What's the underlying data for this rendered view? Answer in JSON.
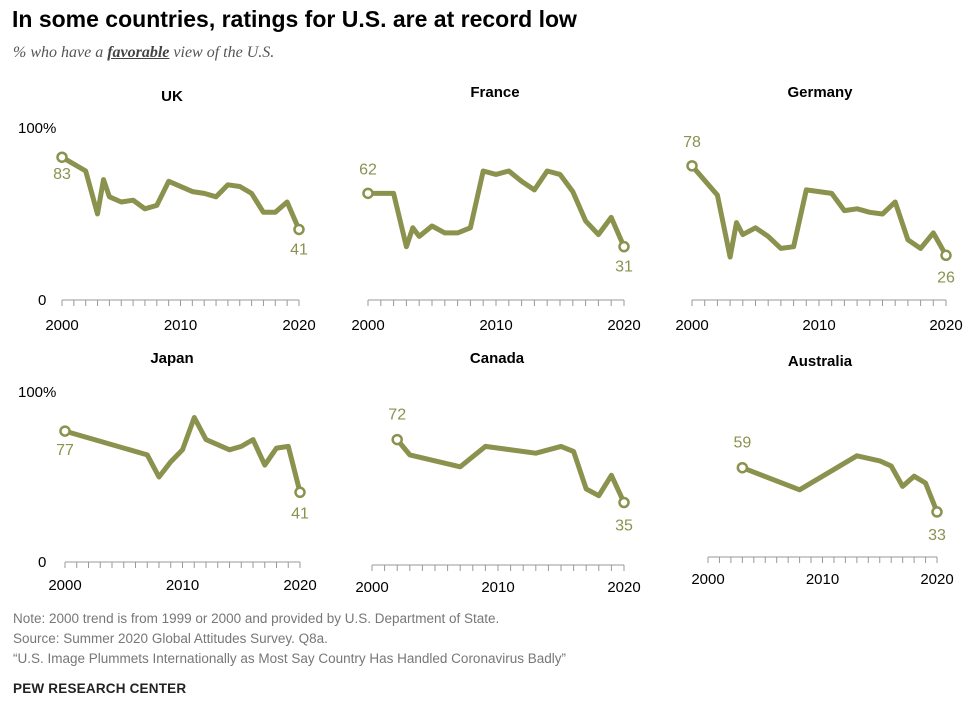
{
  "title": "In some countries, ratings for U.S. are at record low",
  "subtitle": {
    "prefix": "% who have a ",
    "emphasis": "favorable",
    "suffix": " view of the U.S."
  },
  "notes": [
    "Note: 2000 trend is from 1999 or 2000 and provided by U.S. Department of State.",
    "Source: Summer 2020 Global Attitudes Survey. Q8a.",
    "“U.S. Image Plummets Internationally as Most Say Country Has Handled Coronavirus Badly”"
  ],
  "brand": "PEW RESEARCH CENTER",
  "colors": {
    "line": "#8b924e",
    "label": "#8b924e",
    "axis": "#999999"
  },
  "chart_data": [
    {
      "type": "line",
      "title": "UK",
      "x_ticks": [
        "2000",
        "2010",
        "2020"
      ],
      "y_tick_labels": [
        "100%",
        "0"
      ],
      "ylim": [
        0,
        100
      ],
      "xlim": [
        2000,
        2020
      ],
      "x": [
        2000,
        2002,
        2003,
        2003.5,
        2004,
        2005,
        2006,
        2007,
        2008,
        2009,
        2011,
        2012,
        2013,
        2014,
        2015,
        2016,
        2017,
        2018,
        2019,
        2020
      ],
      "values": [
        83,
        75,
        50,
        70,
        60,
        57,
        58,
        53,
        55,
        69,
        63,
        62,
        60,
        67,
        66,
        62,
        51,
        51,
        57,
        41
      ],
      "label_first": "83",
      "label_last": "41"
    },
    {
      "type": "line",
      "title": "France",
      "x_ticks": [
        "2000",
        "2010",
        "2020"
      ],
      "y_tick_labels": [],
      "ylim": [
        0,
        100
      ],
      "xlim": [
        2000,
        2020
      ],
      "x": [
        2000,
        2002,
        2003,
        2003.5,
        2004,
        2005,
        2006,
        2007,
        2008,
        2009,
        2010,
        2011,
        2012,
        2013,
        2014,
        2015,
        2016,
        2017,
        2018,
        2019,
        2020
      ],
      "values": [
        62,
        62,
        31,
        42,
        37,
        43,
        39,
        39,
        42,
        75,
        73,
        75,
        69,
        64,
        75,
        73,
        63,
        46,
        38,
        48,
        31
      ],
      "label_first": "62",
      "label_last": "31"
    },
    {
      "type": "line",
      "title": "Germany",
      "x_ticks": [
        "2000",
        "2010",
        "2020"
      ],
      "y_tick_labels": [],
      "ylim": [
        0,
        100
      ],
      "xlim": [
        2000,
        2020
      ],
      "x": [
        2000,
        2002,
        2003,
        2003.5,
        2004,
        2005,
        2006,
        2007,
        2008,
        2009,
        2010,
        2011,
        2012,
        2013,
        2014,
        2015,
        2016,
        2017,
        2018,
        2019,
        2020
      ],
      "values": [
        78,
        61,
        25,
        45,
        38,
        42,
        37,
        30,
        31,
        64,
        63,
        62,
        52,
        53,
        51,
        50,
        57,
        35,
        30,
        39,
        26
      ],
      "label_first": "78",
      "label_last": "26"
    },
    {
      "type": "line",
      "title": "Japan",
      "x_ticks": [
        "2000",
        "2010",
        "2020"
      ],
      "y_tick_labels": [
        "100%",
        "0"
      ],
      "ylim": [
        0,
        100
      ],
      "xlim": [
        2000,
        2020
      ],
      "x": [
        2000,
        2007,
        2008,
        2009,
        2010,
        2011,
        2012,
        2013,
        2014,
        2015,
        2016,
        2017,
        2018,
        2019,
        2020
      ],
      "values": [
        77,
        63,
        50,
        59,
        66,
        85,
        72,
        69,
        66,
        68,
        72,
        57,
        67,
        68,
        41
      ],
      "label_first": "77",
      "label_last": "41"
    },
    {
      "type": "line",
      "title": "Canada",
      "x_ticks": [
        "2000",
        "2010",
        "2020"
      ],
      "y_tick_labels": [],
      "ylim": [
        0,
        100
      ],
      "xlim": [
        2000,
        2020
      ],
      "x": [
        2002,
        2003,
        2007,
        2009,
        2013,
        2015,
        2016,
        2017,
        2018,
        2019,
        2020
      ],
      "values": [
        72,
        63,
        56,
        68,
        64,
        68,
        65,
        43,
        39,
        51,
        35
      ],
      "label_first": "72",
      "label_last": "35"
    },
    {
      "type": "line",
      "title": "Australia",
      "x_ticks": [
        "2000",
        "2010",
        "2020"
      ],
      "y_tick_labels": [],
      "ylim": [
        0,
        100
      ],
      "xlim": [
        2000,
        2020
      ],
      "x": [
        2003,
        2008,
        2013,
        2015,
        2016,
        2017,
        2018,
        2019,
        2020
      ],
      "values": [
        59,
        46,
        66,
        63,
        60,
        48,
        54,
        50,
        33
      ],
      "label_first": "59",
      "label_last": "33"
    }
  ]
}
